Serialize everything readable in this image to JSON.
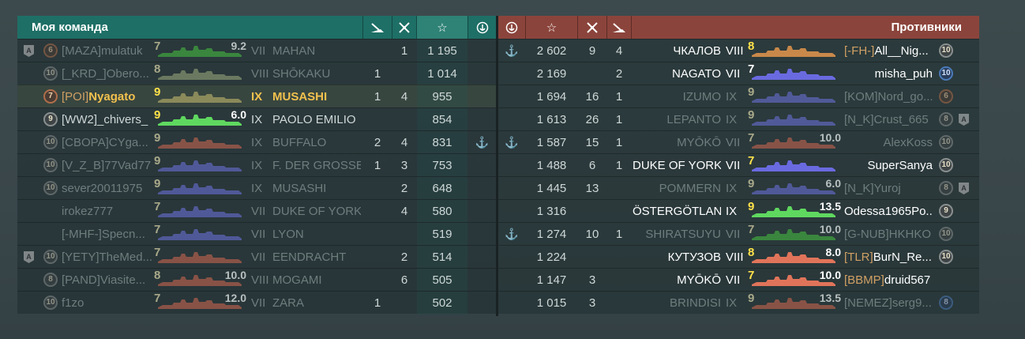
{
  "left": {
    "title": "Моя команда",
    "header_icons": [
      "torpedo-hit-icon",
      "kills-icon",
      "star-icon",
      "anchor-icon"
    ],
    "rows": [
      {
        "tag": "A",
        "badge": "6",
        "clan": "[MAZA]",
        "name": "mulatuk",
        "tier_level": "7",
        "xp": "9.2",
        "tier": "VII",
        "ship": "MAHAN",
        "kills": "",
        "frags": "1",
        "score": "1 195",
        "anchor": "",
        "dead": true,
        "color": "#3f9a3f",
        "dead_kind": "green"
      },
      {
        "tag": "",
        "badge": "10",
        "clan": "[_KRD_]",
        "name": "Obero...",
        "tier_level": "8",
        "xp": "",
        "tier": "VIII",
        "ship": "SHŌKAKU",
        "kills": "1",
        "frags": "",
        "score": "1 014",
        "anchor": "",
        "dead": true,
        "color": "#7a8a6a"
      },
      {
        "tag": "",
        "badge": "7",
        "clan": "[POI]",
        "name": "Nyagato",
        "tier_level": "9",
        "xp": "",
        "tier": "IX",
        "ship": "MUSASHI",
        "kills": "1",
        "frags": "4",
        "score": "955",
        "anchor": "",
        "dead": false,
        "current": true,
        "color": "#8a8a5a"
      },
      {
        "tag": "",
        "badge": "9",
        "clan": "",
        "name": "[WW2]_chivers_",
        "tier_level": "9",
        "xp": "6.0",
        "tier": "IX",
        "ship": "PAOLO EMILIO",
        "kills": "",
        "frags": "",
        "score": "854",
        "anchor": "",
        "dead": false,
        "color": "#5fd85f"
      },
      {
        "tag": "",
        "badge": "10",
        "clan": "[CBOPA]",
        "name": "CYga...",
        "tier_level": "9",
        "xp": "",
        "tier": "IX",
        "ship": "BUFFALO",
        "kills": "2",
        "frags": "4",
        "score": "831",
        "anchor": "⚓",
        "dead": true,
        "color": "#a05a4a"
      },
      {
        "tag": "",
        "badge": "10",
        "clan": "[V_Z_B]",
        "name": "77Vad77",
        "tier_level": "9",
        "xp": "",
        "tier": "IX",
        "ship": "F. DER GROSSE",
        "kills": "1",
        "frags": "3",
        "score": "753",
        "anchor": "",
        "dead": true,
        "color": "#5a62b0"
      },
      {
        "tag": "",
        "badge": "10",
        "clan": "",
        "name": "sever20011975",
        "tier_level": "9",
        "xp": "",
        "tier": "IX",
        "ship": "MUSASHI",
        "kills": "",
        "frags": "2",
        "score": "648",
        "anchor": "",
        "dead": true,
        "color": "#5a62b0"
      },
      {
        "tag": "",
        "badge": "",
        "clan": "",
        "name": "irokez777",
        "tier_level": "7",
        "xp": "",
        "tier": "VII",
        "ship": "DUKE OF YORK",
        "kills": "",
        "frags": "4",
        "score": "580",
        "anchor": "",
        "dead": true,
        "color": "#5a62b0"
      },
      {
        "tag": "",
        "badge": "",
        "clan": "[-MHF-]",
        "name": "Specn...",
        "tier_level": "7",
        "xp": "",
        "tier": "VII",
        "ship": "LYON",
        "kills": "",
        "frags": "",
        "score": "519",
        "anchor": "",
        "dead": true,
        "color": "#5a62b0"
      },
      {
        "tag": "A",
        "badge": "10",
        "clan": "[YETY]",
        "name": "TheMed...",
        "tier_level": "7",
        "xp": "",
        "tier": "VII",
        "ship": "EENDRACHT",
        "kills": "",
        "frags": "2",
        "score": "514",
        "anchor": "",
        "dead": true,
        "color": "#a05a4a"
      },
      {
        "tag": "",
        "badge": "8",
        "clan": "[PAND]",
        "name": "Viasite...",
        "tier_level": "8",
        "xp": "10.0",
        "tier": "VIII",
        "ship": "MOGAMI",
        "kills": "",
        "frags": "6",
        "score": "505",
        "anchor": "",
        "dead": true,
        "color": "#a05a4a"
      },
      {
        "tag": "",
        "badge": "10",
        "clan": "",
        "name": "f1zo",
        "tier_level": "7",
        "xp": "12.0",
        "tier": "VII",
        "ship": "ZARA",
        "kills": "1",
        "frags": "",
        "score": "502",
        "anchor": "",
        "dead": true,
        "color": "#a05a4a"
      }
    ]
  },
  "right": {
    "title": "Противники",
    "rows": [
      {
        "anchor": "⚓",
        "score": "2 602",
        "frags": "9",
        "kills": "4",
        "ship": "ЧКАЛОВ",
        "tier": "VIII",
        "tier_level": "8",
        "xp": "",
        "clan": "[-FH-]",
        "name": "All__Nig...",
        "badge": "10",
        "tag": "",
        "dead": false,
        "color": "#c8884a"
      },
      {
        "anchor": "",
        "score": "2 169",
        "frags": "",
        "kills": "2",
        "ship": "NAGATO",
        "tier": "VII",
        "tier_level": "7",
        "xp": "",
        "clan": "",
        "name": "misha_puh",
        "badge": "10",
        "badge_blue": true,
        "tag": "",
        "dead": false,
        "color": "#6a6ae0"
      },
      {
        "anchor": "",
        "score": "1 694",
        "frags": "16",
        "kills": "1",
        "ship": "IZUMO",
        "tier": "IX",
        "tier_level": "9",
        "xp": "",
        "clan": "[KOM]",
        "name": "Nord_go...",
        "badge": "6",
        "tag": "",
        "dead": true,
        "color": "#5a62b0"
      },
      {
        "anchor": "",
        "score": "1 613",
        "frags": "26",
        "kills": "1",
        "ship": "LEPANTO",
        "tier": "IX",
        "tier_level": "9",
        "xp": "",
        "clan": "[N_K]",
        "name": "Crust_665",
        "badge": "8",
        "tag": "A",
        "dead": true,
        "color": "#5a62b0"
      },
      {
        "anchor": "⚓",
        "score": "1 587",
        "frags": "15",
        "kills": "1",
        "ship": "MYŌKŌ",
        "tier": "VII",
        "tier_level": "7",
        "xp": "10.0",
        "clan": "",
        "name": "AlexKoss",
        "badge": "10",
        "tag": "",
        "dead": true,
        "color": "#a05a4a"
      },
      {
        "anchor": "",
        "score": "1 488",
        "frags": "6",
        "kills": "1",
        "ship": "DUKE OF YORK",
        "tier": "VII",
        "tier_level": "7",
        "xp": "",
        "clan": "",
        "name": "SuperSanya",
        "badge": "10",
        "tag": "",
        "dead": false,
        "color": "#6a6ae0"
      },
      {
        "anchor": "",
        "score": "1 445",
        "frags": "13",
        "kills": "",
        "ship": "POMMERN",
        "tier": "IX",
        "tier_level": "9",
        "xp": "6.0",
        "clan": "[N_K]",
        "name": "Yuroj",
        "badge": "8",
        "tag": "A",
        "dead": true,
        "color": "#5a62b0"
      },
      {
        "anchor": "",
        "score": "1 316",
        "frags": "",
        "kills": "",
        "ship": "ÖSTERGÖTLAND",
        "tier": "IX",
        "tier_level": "9",
        "xp": "13.5",
        "clan": "",
        "name": "Odessa1965Po...",
        "badge": "9",
        "tag": "",
        "dead": false,
        "color": "#5fd85f"
      },
      {
        "anchor": "⚓",
        "score": "1 274",
        "frags": "10",
        "kills": "1",
        "ship": "SHIRATSUYU",
        "tier": "VII",
        "tier_level": "7",
        "xp": "10.0",
        "clan": "[G-NUB]",
        "name": "HKHKO",
        "badge": "10",
        "tag": "",
        "dead": true,
        "color": "#3f9a3f"
      },
      {
        "anchor": "",
        "score": "1 224",
        "frags": "",
        "kills": "",
        "ship": "КУТУЗОВ",
        "tier": "VIII",
        "tier_level": "8",
        "xp": "8.0",
        "clan": "[TLR]",
        "name": "BurN_Re...",
        "badge": "10",
        "tag": "",
        "dead": false,
        "color": "#e0745a"
      },
      {
        "anchor": "",
        "score": "1 147",
        "frags": "3",
        "kills": "",
        "ship": "MYŌKŌ",
        "tier": "VII",
        "tier_level": "7",
        "xp": "10.0",
        "clan": "[BBMP]",
        "name": "druid567",
        "badge": "",
        "tag": "",
        "dead": false,
        "color": "#e0745a"
      },
      {
        "anchor": "",
        "score": "1 015",
        "frags": "3",
        "kills": "",
        "ship": "BRINDISI",
        "tier": "IX",
        "tier_level": "9",
        "xp": "13.5",
        "clan": "[NEMEZ]",
        "name": "serg9...",
        "badge": "8",
        "badge_blue": true,
        "tag": "",
        "dead": true,
        "color": "#a05a4a"
      }
    ]
  },
  "icons": {
    "torpedo": "torpedo-hit-icon",
    "kills": "kills-icon",
    "star": "☆",
    "anchor": "anchor-icon"
  },
  "colors": {
    "ally_header": "#1e6f66",
    "enemy_header": "#8b443b",
    "current_player": "#f2c14e",
    "clan": "#d0a064"
  }
}
